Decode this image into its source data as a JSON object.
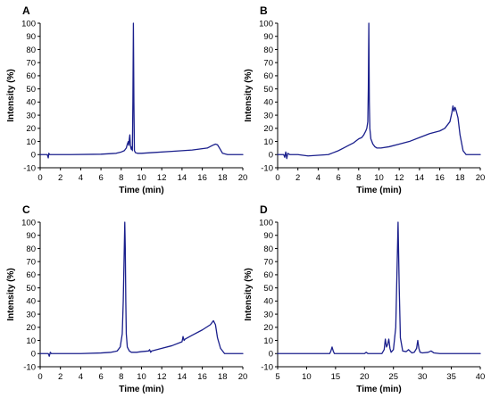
{
  "colors": {
    "trace": "#1a1f8c",
    "axis": "#000000"
  },
  "chart_data": [
    {
      "panel": "A",
      "type": "line",
      "xlabel": "Time (min)",
      "ylabel": "Intensity (%)",
      "xlim": [
        0,
        20
      ],
      "ylim": [
        -10,
        100
      ],
      "xticks": [
        0,
        2,
        4,
        6,
        8,
        10,
        12,
        14,
        16,
        18,
        20
      ],
      "yticks": [
        -10,
        0,
        10,
        20,
        30,
        40,
        50,
        60,
        70,
        80,
        90,
        100
      ],
      "x": [
        0,
        0.7,
        0.8,
        0.85,
        0.95,
        1.2,
        3,
        6,
        7.5,
        8,
        8.3,
        8.5,
        8.6,
        8.7,
        8.75,
        8.8,
        8.85,
        8.9,
        8.95,
        9.0,
        9.05,
        9.1,
        9.15,
        9.2,
        9.25,
        9.3,
        9.4,
        9.6,
        10,
        11,
        13,
        15,
        16.5,
        17,
        17.3,
        17.5,
        17.7,
        18,
        18.5,
        20
      ],
      "y": [
        0,
        0,
        -2.5,
        1,
        0,
        0,
        0,
        0.3,
        1,
        2,
        3,
        5,
        8,
        10,
        7,
        12,
        15,
        8,
        5,
        4,
        6,
        3,
        40,
        100,
        40,
        3,
        1.5,
        1,
        1,
        1.5,
        2.5,
        3.5,
        5,
        7,
        8,
        7.5,
        5,
        1,
        0,
        0
      ]
    },
    {
      "panel": "B",
      "type": "line",
      "xlabel": "Time (min)",
      "ylabel": "Intensity (%)",
      "xlim": [
        0,
        20
      ],
      "ylim": [
        -10,
        100
      ],
      "xticks": [
        0,
        2,
        4,
        6,
        8,
        10,
        12,
        14,
        16,
        18,
        20
      ],
      "yticks": [
        -10,
        0,
        10,
        20,
        30,
        40,
        50,
        60,
        70,
        80,
        90,
        100
      ],
      "x": [
        0,
        0.6,
        0.7,
        0.8,
        0.9,
        1.0,
        1.2,
        2,
        3,
        4,
        5,
        5.5,
        6,
        6.5,
        7,
        7.5,
        8,
        8.3,
        8.5,
        8.7,
        8.8,
        8.9,
        8.95,
        9.0,
        9.05,
        9.1,
        9.2,
        9.4,
        9.6,
        9.8,
        10.2,
        11,
        12,
        13,
        14,
        15,
        16,
        16.5,
        17,
        17.2,
        17.3,
        17.4,
        17.5,
        17.6,
        17.8,
        18,
        18.3,
        18.6,
        19,
        20
      ],
      "y": [
        0,
        0,
        -2,
        2,
        -3,
        1,
        0,
        0,
        -1,
        -0.5,
        0,
        1.5,
        3,
        5,
        7,
        9,
        12,
        13,
        15,
        18,
        20,
        25,
        50,
        100,
        40,
        20,
        12,
        8,
        6,
        5,
        5,
        6,
        8,
        10,
        13,
        16,
        18,
        20,
        25,
        32,
        37,
        33,
        36,
        34,
        28,
        15,
        3,
        0,
        0,
        0
      ]
    },
    {
      "panel": "C",
      "type": "line",
      "xlabel": "Time (min)",
      "ylabel": "Intensity (%)",
      "xlim": [
        0,
        20
      ],
      "ylim": [
        -10,
        100
      ],
      "xticks": [
        0,
        2,
        4,
        6,
        8,
        10,
        12,
        14,
        16,
        18,
        20
      ],
      "yticks": [
        -10,
        0,
        10,
        20,
        30,
        40,
        50,
        60,
        70,
        80,
        90,
        100
      ],
      "x": [
        0,
        0.8,
        0.9,
        1.0,
        1.1,
        1.5,
        4,
        6,
        7,
        7.6,
        7.9,
        8.1,
        8.2,
        8.3,
        8.35,
        8.4,
        8.45,
        8.5,
        8.6,
        8.8,
        9,
        9.5,
        10,
        10.7,
        10.8,
        10.9,
        11,
        12,
        13,
        14,
        14.1,
        14.2,
        14.3,
        15,
        16,
        16.8,
        17.1,
        17.3,
        17.5,
        17.8,
        18.2,
        20
      ],
      "y": [
        0,
        0,
        -2,
        1,
        0,
        0,
        0,
        0.5,
        1,
        2,
        5,
        15,
        40,
        80,
        100,
        80,
        40,
        15,
        5,
        2,
        1,
        1,
        1.5,
        2,
        3,
        1,
        2,
        4,
        6,
        9,
        13,
        10,
        11,
        14,
        18,
        22,
        25,
        22,
        12,
        4,
        0,
        0
      ]
    },
    {
      "panel": "D",
      "type": "line",
      "xlabel": "Time (min)",
      "ylabel": "Intensity (%)",
      "xlim": [
        5,
        40
      ],
      "ylim": [
        -10,
        100
      ],
      "xticks": [
        5,
        10,
        15,
        20,
        25,
        30,
        35,
        40
      ],
      "yticks": [
        -10,
        0,
        10,
        20,
        30,
        40,
        50,
        60,
        70,
        80,
        90,
        100
      ],
      "x": [
        5,
        14,
        14.2,
        14.4,
        14.6,
        14.8,
        20,
        20.3,
        20.6,
        23,
        23.4,
        23.6,
        23.8,
        24,
        24.2,
        24.4,
        24.6,
        25,
        25.4,
        25.6,
        25.8,
        26,
        26.2,
        26.6,
        27.2,
        27.6,
        28.2,
        28.6,
        29,
        29.2,
        29.4,
        29.6,
        30,
        31,
        31.5,
        32,
        33,
        35,
        40
      ],
      "y": [
        0,
        0,
        2,
        5,
        2,
        0,
        0,
        1,
        0,
        0,
        3,
        11,
        5,
        7,
        11,
        4,
        1,
        3,
        20,
        60,
        100,
        50,
        12,
        2,
        1.5,
        3,
        0.5,
        1,
        4,
        10,
        4,
        1,
        0.5,
        1,
        2,
        0.5,
        0,
        0,
        0
      ]
    }
  ]
}
